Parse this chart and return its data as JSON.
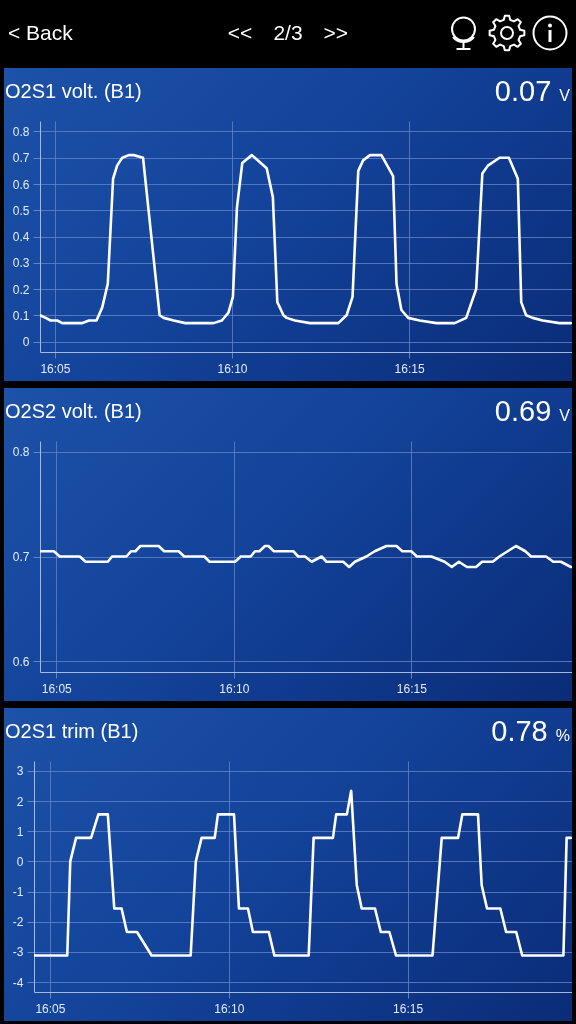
{
  "chart_data": [
    {
      "type": "other",
      "annotations": [
        "< Back",
        "<<",
        "2/3",
        ">>"
      ]
    },
    {
      "type": "line",
      "title": "O2S1 volt. (B1)",
      "annotations": [
        "0.07 V"
      ],
      "x": [
        16.0763,
        16.079,
        16.0813,
        16.0844,
        16.0868,
        16.0907,
        16.0938,
        16.0962,
        16.0993,
        16.1029,
        16.1056,
        16.1082,
        16.1107,
        16.1126,
        16.115,
        16.1181,
        16.1204,
        16.1248,
        16.1326,
        16.1345,
        16.1392,
        16.1447,
        16.1549,
        16.158,
        16.1619,
        16.165,
        16.1671,
        16.169,
        16.1715,
        16.176,
        16.183,
        16.1859,
        16.188,
        16.1909,
        16.1924,
        16.1963,
        16.2034,
        16.2167,
        16.2206,
        16.2234,
        16.2261,
        16.2284,
        16.2316,
        16.237,
        16.2425,
        16.2441,
        16.2464,
        16.2496,
        16.255,
        16.2629,
        16.2715,
        16.2769,
        16.2816,
        16.2845,
        16.2871,
        16.2926,
        16.297,
        16.3012,
        16.3028,
        16.3051,
        16.3082,
        16.3129,
        16.3208,
        16.3262
      ],
      "series": [
        {
          "color": "#ffffff",
          "values": [
            0.1,
            0.09,
            0.08,
            0.08,
            0.07,
            0.07,
            0.07,
            0.07,
            0.08,
            0.08,
            0.13,
            0.22,
            0.62,
            0.67,
            0.7,
            0.71,
            0.71,
            0.7,
            0.1,
            0.09,
            0.08,
            0.07,
            0.07,
            0.07,
            0.08,
            0.11,
            0.17,
            0.51,
            0.68,
            0.71,
            0.66,
            0.55,
            0.15,
            0.1,
            0.09,
            0.08,
            0.07,
            0.07,
            0.1,
            0.17,
            0.65,
            0.69,
            0.71,
            0.71,
            0.63,
            0.22,
            0.12,
            0.09,
            0.08,
            0.07,
            0.07,
            0.09,
            0.2,
            0.64,
            0.67,
            0.7,
            0.7,
            0.62,
            0.15,
            0.1,
            0.09,
            0.08,
            0.07,
            0.07
          ]
        }
      ],
      "xlim": [
        16.0763,
        16.3267
      ],
      "xticks": [
        {
          "value": 16.08333,
          "label": "16:05"
        },
        {
          "value": 16.16667,
          "label": "16:10"
        },
        {
          "value": 16.25,
          "label": "16:15"
        }
      ],
      "ylim": [
        -0.04,
        0.84
      ],
      "yticks": [
        0,
        0.1,
        0.2,
        0.3,
        0.4,
        0.5,
        0.6,
        0.7,
        0.8
      ],
      "grid": true
    },
    {
      "type": "line",
      "title": "O2S2 volt. (B1)",
      "annotations": [
        "0.69 V"
      ],
      "x": [
        16.0757,
        16.0822,
        16.085,
        16.0944,
        16.0971,
        16.1075,
        16.1095,
        16.1163,
        16.1184,
        16.1205,
        16.1228,
        16.1314,
        16.134,
        16.1408,
        16.1434,
        16.1528,
        16.1553,
        16.1673,
        16.1699,
        16.1746,
        16.1766,
        16.1787,
        16.1813,
        16.1829,
        16.1855,
        16.1946,
        16.1969,
        16.2001,
        16.2032,
        16.2079,
        16.2102,
        16.218,
        16.2208,
        16.2235,
        16.2289,
        16.2328,
        16.2383,
        16.243,
        16.2458,
        16.25,
        16.2526,
        16.2594,
        16.2656,
        16.269,
        16.2723,
        16.2761,
        16.2804,
        16.2832,
        16.2882,
        16.2913,
        16.2952,
        16.2991,
        16.3035,
        16.3062,
        16.3132,
        16.3166,
        16.3202,
        16.3249
      ],
      "series": [
        {
          "color": "#ffffff",
          "values": [
            0.705,
            0.705,
            0.7,
            0.7,
            0.695,
            0.695,
            0.7,
            0.7,
            0.705,
            0.705,
            0.71,
            0.71,
            0.705,
            0.705,
            0.7,
            0.7,
            0.695,
            0.695,
            0.7,
            0.7,
            0.705,
            0.705,
            0.71,
            0.71,
            0.705,
            0.705,
            0.7,
            0.7,
            0.695,
            0.7,
            0.695,
            0.695,
            0.69,
            0.695,
            0.7,
            0.705,
            0.71,
            0.71,
            0.705,
            0.705,
            0.7,
            0.7,
            0.695,
            0.69,
            0.695,
            0.69,
            0.69,
            0.695,
            0.695,
            0.7,
            0.705,
            0.71,
            0.705,
            0.7,
            0.7,
            0.695,
            0.695,
            0.69
          ]
        }
      ],
      "xlim": [
        16.0757,
        16.3254
      ],
      "xticks": [
        {
          "value": 16.08333,
          "label": "16:05"
        },
        {
          "value": 16.16667,
          "label": "16:10"
        },
        {
          "value": 16.25,
          "label": "16:15"
        }
      ],
      "ylim": [
        0.59,
        0.81
      ],
      "yticks": [
        0.6,
        0.7,
        0.8
      ],
      "grid": true
    },
    {
      "type": "line",
      "title": "O2S1 trim (B1)",
      "annotations": [
        "0.78 %"
      ],
      "x": [
        16.0762,
        16.0914,
        16.0928,
        16.0955,
        16.1025,
        16.1059,
        16.1103,
        16.1133,
        16.1167,
        16.1192,
        16.1239,
        16.1307,
        16.1489,
        16.1513,
        16.154,
        16.1601,
        16.1616,
        16.1691,
        16.1714,
        16.1756,
        16.1779,
        16.1853,
        16.1879,
        16.2039,
        16.2062,
        16.2152,
        16.2167,
        16.2217,
        16.2237,
        16.2263,
        16.2286,
        16.2348,
        16.2375,
        16.2415,
        16.2446,
        16.2616,
        16.2659,
        16.2735,
        16.2755,
        16.2828,
        16.2845,
        16.287,
        16.2932,
        16.2959,
        16.3006,
        16.3034,
        16.3226,
        16.3241,
        16.3261
      ],
      "series": [
        {
          "color": "#ffffff",
          "values": [
            -3.12,
            -3.12,
            0,
            0.78,
            0.78,
            1.56,
            1.56,
            -1.56,
            -1.56,
            -2.34,
            -2.34,
            -3.12,
            -3.12,
            0,
            0.78,
            0.78,
            1.56,
            1.56,
            -1.56,
            -1.56,
            -2.34,
            -2.34,
            -3.12,
            -3.12,
            0.78,
            0.78,
            1.56,
            1.56,
            2.34,
            -0.78,
            -1.56,
            -1.56,
            -2.34,
            -2.34,
            -3.12,
            -3.12,
            0.78,
            0.78,
            1.56,
            1.56,
            -0.78,
            -1.56,
            -1.56,
            -2.34,
            -2.34,
            -3.12,
            -3.12,
            0.78,
            0.78
          ]
        }
      ],
      "xlim": [
        16.0759,
        16.3266
      ],
      "xticks": [
        {
          "value": 16.08333,
          "label": "16:05"
        },
        {
          "value": 16.16667,
          "label": "16:10"
        },
        {
          "value": 16.25,
          "label": "16:15"
        }
      ],
      "ylim": [
        -4.33,
        3.33
      ],
      "yticks": [
        -4,
        -3,
        -2,
        -1,
        0,
        1,
        2,
        3
      ],
      "grid": true
    }
  ]
}
